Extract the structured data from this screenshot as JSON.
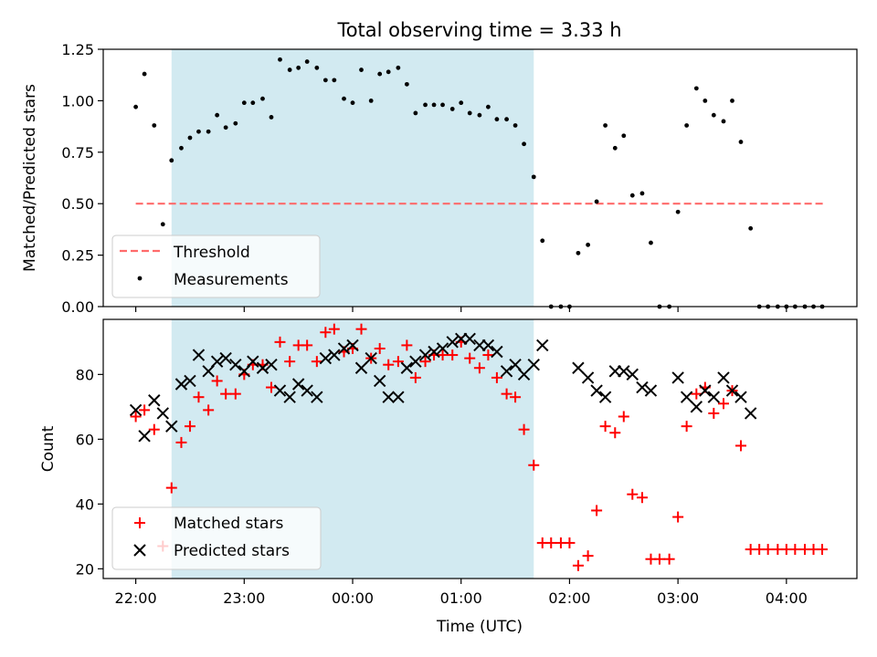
{
  "chart_data": {
    "title": "Total observing time = 3.33 h",
    "xlabel": "Time (UTC)",
    "x_unit": "hours (UTC), values past 24 are times after midnight",
    "x_range": [
      21.7,
      28.65
    ],
    "x_ticks": [
      {
        "x": 22,
        "label": "22:00"
      },
      {
        "x": 23,
        "label": "23:00"
      },
      {
        "x": 24,
        "label": "00:00"
      },
      {
        "x": 25,
        "label": "01:00"
      },
      {
        "x": 26,
        "label": "02:00"
      },
      {
        "x": 27,
        "label": "03:00"
      },
      {
        "x": 28,
        "label": "04:00"
      }
    ],
    "shaded_interval": {
      "x_start": 22.33,
      "x_end": 25.67,
      "color": "#add8e6"
    },
    "panels": [
      {
        "type": "scatter",
        "ylabel": "Matched/Predicted stars",
        "ylim": [
          0,
          1.25
        ],
        "y_ticks": [
          {
            "y": 0,
            "label": "0.00"
          },
          {
            "y": 0.25,
            "label": "0.25"
          },
          {
            "y": 0.5,
            "label": "0.50"
          },
          {
            "y": 0.75,
            "label": "0.75"
          },
          {
            "y": 1.0,
            "label": "1.00"
          },
          {
            "y": 1.25,
            "label": "1.25"
          }
        ],
        "legend_position": "lower-left",
        "threshold": {
          "name": "Threshold",
          "y": 0.5,
          "x_start": 22.0,
          "x_end": 28.35,
          "color": "#ff6b6b",
          "style": "dashed"
        },
        "series": [
          {
            "name": "Measurements",
            "marker": "dot",
            "color": "#000000",
            "points": [
              [
                22.0,
                0.97
              ],
              [
                22.08,
                1.13
              ],
              [
                22.17,
                0.88
              ],
              [
                22.25,
                0.4
              ],
              [
                22.33,
                0.71
              ],
              [
                22.42,
                0.77
              ],
              [
                22.5,
                0.82
              ],
              [
                22.58,
                0.85
              ],
              [
                22.67,
                0.85
              ],
              [
                22.75,
                0.93
              ],
              [
                22.83,
                0.87
              ],
              [
                22.92,
                0.89
              ],
              [
                23.0,
                0.99
              ],
              [
                23.08,
                0.99
              ],
              [
                23.17,
                1.01
              ],
              [
                23.25,
                0.92
              ],
              [
                23.33,
                1.2
              ],
              [
                23.42,
                1.15
              ],
              [
                23.5,
                1.16
              ],
              [
                23.58,
                1.19
              ],
              [
                23.67,
                1.16
              ],
              [
                23.75,
                1.1
              ],
              [
                23.83,
                1.1
              ],
              [
                23.92,
                1.01
              ],
              [
                24.0,
                0.99
              ],
              [
                24.08,
                1.15
              ],
              [
                24.17,
                1.0
              ],
              [
                24.25,
                1.13
              ],
              [
                24.33,
                1.14
              ],
              [
                24.42,
                1.16
              ],
              [
                24.5,
                1.08
              ],
              [
                24.58,
                0.94
              ],
              [
                24.67,
                0.98
              ],
              [
                24.75,
                0.98
              ],
              [
                24.83,
                0.98
              ],
              [
                24.92,
                0.96
              ],
              [
                25.0,
                0.99
              ],
              [
                25.08,
                0.94
              ],
              [
                25.17,
                0.93
              ],
              [
                25.25,
                0.97
              ],
              [
                25.33,
                0.91
              ],
              [
                25.42,
                0.91
              ],
              [
                25.5,
                0.88
              ],
              [
                25.58,
                0.79
              ],
              [
                25.67,
                0.63
              ],
              [
                25.75,
                0.32
              ],
              [
                25.83,
                0.0
              ],
              [
                25.92,
                0.0
              ],
              [
                26.0,
                0.0
              ],
              [
                26.08,
                0.26
              ],
              [
                26.17,
                0.3
              ],
              [
                26.25,
                0.51
              ],
              [
                26.33,
                0.88
              ],
              [
                26.42,
                0.77
              ],
              [
                26.5,
                0.83
              ],
              [
                26.58,
                0.54
              ],
              [
                26.67,
                0.55
              ],
              [
                26.75,
                0.31
              ],
              [
                26.83,
                0.0
              ],
              [
                26.92,
                0.0
              ],
              [
                27.0,
                0.46
              ],
              [
                27.08,
                0.88
              ],
              [
                27.17,
                1.06
              ],
              [
                27.25,
                1.0
              ],
              [
                27.33,
                0.93
              ],
              [
                27.42,
                0.9
              ],
              [
                27.5,
                1.0
              ],
              [
                27.58,
                0.8
              ],
              [
                27.67,
                0.38
              ],
              [
                27.75,
                0.0
              ],
              [
                27.83,
                0.0
              ],
              [
                27.92,
                0.0
              ],
              [
                28.0,
                0.0
              ],
              [
                28.08,
                0.0
              ],
              [
                28.17,
                0.0
              ],
              [
                28.25,
                0.0
              ],
              [
                28.33,
                0.0
              ]
            ]
          }
        ]
      },
      {
        "type": "scatter",
        "ylabel": "Count",
        "ylim": [
          17,
          97
        ],
        "y_ticks": [
          {
            "y": 20,
            "label": "20"
          },
          {
            "y": 40,
            "label": "40"
          },
          {
            "y": 60,
            "label": "60"
          },
          {
            "y": 80,
            "label": "80"
          }
        ],
        "legend_position": "lower-left",
        "series": [
          {
            "name": "Matched stars",
            "marker": "plus",
            "color": "#ff0000",
            "points": [
              [
                22.0,
                67
              ],
              [
                22.08,
                69
              ],
              [
                22.17,
                63
              ],
              [
                22.25,
                27
              ],
              [
                22.33,
                45
              ],
              [
                22.42,
                59
              ],
              [
                22.5,
                64
              ],
              [
                22.58,
                73
              ],
              [
                22.67,
                69
              ],
              [
                22.75,
                78
              ],
              [
                22.83,
                74
              ],
              [
                22.92,
                74
              ],
              [
                23.0,
                80
              ],
              [
                23.08,
                83
              ],
              [
                23.17,
                83
              ],
              [
                23.25,
                76
              ],
              [
                23.33,
                90
              ],
              [
                23.42,
                84
              ],
              [
                23.5,
                89
              ],
              [
                23.58,
                89
              ],
              [
                23.67,
                84
              ],
              [
                23.75,
                93
              ],
              [
                23.83,
                94
              ],
              [
                23.92,
                87
              ],
              [
                24.0,
                88
              ],
              [
                24.08,
                94
              ],
              [
                24.17,
                85
              ],
              [
                24.25,
                88
              ],
              [
                24.33,
                83
              ],
              [
                24.42,
                84
              ],
              [
                24.5,
                89
              ],
              [
                24.58,
                79
              ],
              [
                24.67,
                84
              ],
              [
                24.75,
                86
              ],
              [
                24.83,
                86
              ],
              [
                24.92,
                86
              ],
              [
                25.0,
                90
              ],
              [
                25.08,
                85
              ],
              [
                25.17,
                82
              ],
              [
                25.25,
                86
              ],
              [
                25.33,
                79
              ],
              [
                25.42,
                74
              ],
              [
                25.5,
                73
              ],
              [
                25.58,
                63
              ],
              [
                25.67,
                52
              ],
              [
                25.75,
                28
              ],
              [
                25.83,
                28
              ],
              [
                25.92,
                28
              ],
              [
                26.0,
                28
              ],
              [
                26.08,
                21
              ],
              [
                26.17,
                24
              ],
              [
                26.25,
                38
              ],
              [
                26.33,
                64
              ],
              [
                26.42,
                62
              ],
              [
                26.5,
                67
              ],
              [
                26.58,
                43
              ],
              [
                26.67,
                42
              ],
              [
                26.75,
                23
              ],
              [
                26.83,
                23
              ],
              [
                26.92,
                23
              ],
              [
                27.0,
                36
              ],
              [
                27.08,
                64
              ],
              [
                27.17,
                74
              ],
              [
                27.25,
                76
              ],
              [
                27.33,
                68
              ],
              [
                27.42,
                71
              ],
              [
                27.5,
                75
              ],
              [
                27.58,
                58
              ],
              [
                27.67,
                26
              ],
              [
                27.75,
                26
              ],
              [
                27.83,
                26
              ],
              [
                27.92,
                26
              ],
              [
                28.0,
                26
              ],
              [
                28.08,
                26
              ],
              [
                28.17,
                26
              ],
              [
                28.25,
                26
              ],
              [
                28.33,
                26
              ]
            ]
          },
          {
            "name": "Predicted stars",
            "marker": "x",
            "color": "#000000",
            "points": [
              [
                22.0,
                69
              ],
              [
                22.08,
                61
              ],
              [
                22.17,
                72
              ],
              [
                22.25,
                68
              ],
              [
                22.33,
                64
              ],
              [
                22.42,
                77
              ],
              [
                22.5,
                78
              ],
              [
                22.58,
                86
              ],
              [
                22.67,
                81
              ],
              [
                22.75,
                84
              ],
              [
                22.83,
                85
              ],
              [
                22.92,
                83
              ],
              [
                23.0,
                81
              ],
              [
                23.08,
                84
              ],
              [
                23.17,
                82
              ],
              [
                23.25,
                83
              ],
              [
                23.33,
                75
              ],
              [
                23.42,
                73
              ],
              [
                23.5,
                77
              ],
              [
                23.58,
                75
              ],
              [
                23.67,
                73
              ],
              [
                23.75,
                85
              ],
              [
                23.83,
                86
              ],
              [
                23.92,
                88
              ],
              [
                24.0,
                89
              ],
              [
                24.08,
                82
              ],
              [
                24.17,
                85
              ],
              [
                24.25,
                78
              ],
              [
                24.33,
                73
              ],
              [
                24.42,
                73
              ],
              [
                24.5,
                82
              ],
              [
                24.58,
                84
              ],
              [
                24.67,
                86
              ],
              [
                24.75,
                87
              ],
              [
                24.83,
                88
              ],
              [
                24.92,
                90
              ],
              [
                25.0,
                91
              ],
              [
                25.08,
                91
              ],
              [
                25.17,
                89
              ],
              [
                25.25,
                89
              ],
              [
                25.33,
                87
              ],
              [
                25.42,
                81
              ],
              [
                25.5,
                83
              ],
              [
                25.58,
                80
              ],
              [
                25.67,
                83
              ],
              [
                25.75,
                89
              ],
              [
                26.08,
                82
              ],
              [
                26.17,
                79
              ],
              [
                26.25,
                75
              ],
              [
                26.33,
                73
              ],
              [
                26.42,
                81
              ],
              [
                26.5,
                81
              ],
              [
                26.58,
                80
              ],
              [
                26.67,
                76
              ],
              [
                26.75,
                75
              ],
              [
                27.0,
                79
              ],
              [
                27.08,
                73
              ],
              [
                27.17,
                70
              ],
              [
                27.25,
                75
              ],
              [
                27.33,
                73
              ],
              [
                27.42,
                79
              ],
              [
                27.5,
                75
              ],
              [
                27.58,
                73
              ],
              [
                27.67,
                68
              ]
            ]
          }
        ]
      }
    ]
  }
}
